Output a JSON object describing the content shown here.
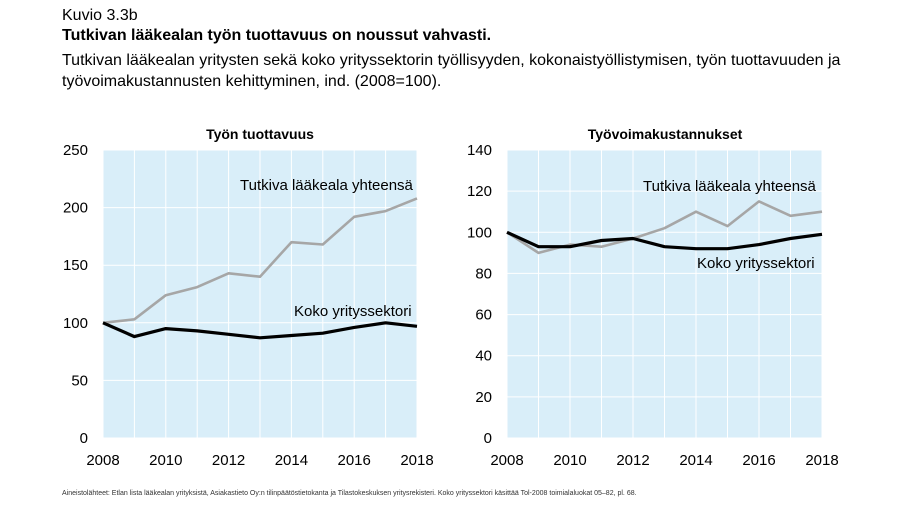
{
  "figure_label": "Kuvio 3.3b",
  "headline": "Tutkivan lääkealan työn tuottavuus on noussut vahvasti.",
  "subtitle": "Tutkivan lääkealan yritysten sekä koko yrityssektorin työllisyyden, kokonaistyöllistymisen, työn tuottavuuden ja työvoimakustannusten kehittyminen, ind. (2008=100).",
  "source": "Aineistolähteet: Etlan lista lääkealan yrityksistä, Asiakastieto Oy:n tilinpäätöstietokanta ja Tilastokeskuksen yritysrekisteri. Koko yrityssektori käsittää Tol-2008 toimialaluokat 05–82, pl. 68.",
  "colors": {
    "plot_bg": "#d9eef9",
    "grid": "#ffffff",
    "pharma": "#a6a6a6",
    "all": "#000000"
  },
  "chart_data": [
    {
      "type": "line",
      "title": "Työn tuottavuus",
      "x": [
        2008,
        2009,
        2010,
        2011,
        2012,
        2013,
        2014,
        2015,
        2016,
        2017,
        2018
      ],
      "xticks": [
        "2008",
        "2010",
        "2012",
        "2014",
        "2016",
        "2018"
      ],
      "yticks": [
        "0",
        "50",
        "100",
        "150",
        "200",
        "250"
      ],
      "ylim": [
        0,
        250
      ],
      "grid": true,
      "series": [
        {
          "name": "Tutkiva lääkeala yhteensä",
          "color": "#a6a6a6",
          "values": [
            100,
            103,
            124,
            131,
            143,
            140,
            170,
            168,
            192,
            197,
            208
          ]
        },
        {
          "name": "Koko yrityssektori",
          "color": "#000000",
          "values": [
            100,
            88,
            95,
            93,
            90,
            87,
            89,
            91,
            96,
            100,
            97
          ]
        }
      ]
    },
    {
      "type": "line",
      "title": "Työvoimakustannukset",
      "x": [
        2008,
        2009,
        2010,
        2011,
        2012,
        2013,
        2014,
        2015,
        2016,
        2017,
        2018
      ],
      "xticks": [
        "2008",
        "2010",
        "2012",
        "2014",
        "2016",
        "2018"
      ],
      "yticks": [
        "0",
        "20",
        "40",
        "60",
        "80",
        "100",
        "120",
        "140"
      ],
      "ylim": [
        0,
        140
      ],
      "grid": true,
      "series": [
        {
          "name": "Tutkiva lääkeala yhteensä",
          "color": "#a6a6a6",
          "values": [
            100,
            90,
            94,
            93,
            97,
            102,
            110,
            103,
            115,
            108,
            110
          ]
        },
        {
          "name": "Koko yrityssektori",
          "color": "#000000",
          "values": [
            100,
            93,
            93,
            96,
            97,
            93,
            92,
            92,
            94,
            97,
            99
          ]
        }
      ]
    }
  ]
}
